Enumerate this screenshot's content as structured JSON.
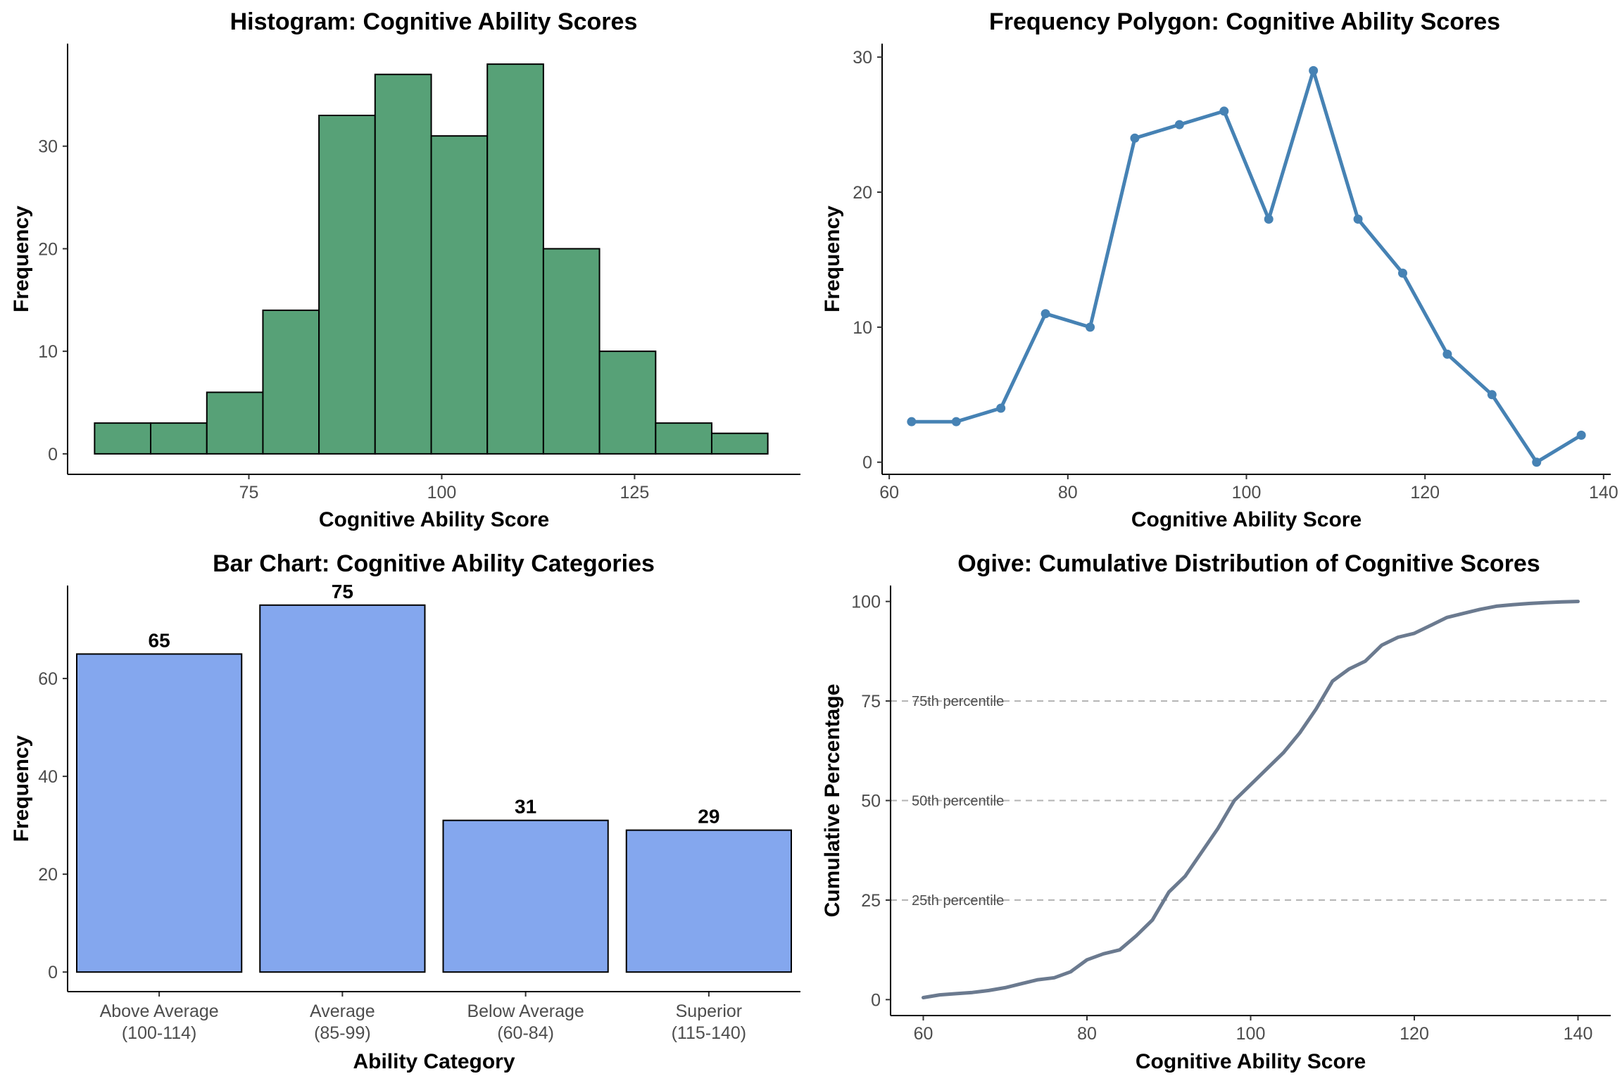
{
  "chart_data": [
    {
      "type": "bar",
      "subtype": "histogram",
      "title": "Histogram: Cognitive Ability Scores",
      "xlabel": "Cognitive Ability Score",
      "ylabel": "Frequency",
      "xlim": [
        51.5,
        146.5
      ],
      "ylim": [
        -2,
        40
      ],
      "xticks": [
        75,
        100,
        125
      ],
      "yticks": [
        0,
        10,
        20,
        30
      ],
      "grid": false,
      "bin_edges": [
        55,
        62.27,
        69.55,
        76.82,
        84.09,
        91.36,
        98.64,
        105.91,
        113.18,
        120.45,
        127.73,
        135,
        142.27
      ],
      "values": [
        3,
        3,
        6,
        14,
        33,
        37,
        31,
        38,
        20,
        10,
        3,
        2
      ],
      "colors": {
        "fill": "#57a177",
        "stroke": "#000000"
      }
    },
    {
      "type": "line",
      "subtype": "frequency polygon",
      "title": "Frequency Polygon: Cognitive Ability Scores",
      "xlabel": "Cognitive Ability Score",
      "ylabel": "Frequency",
      "xlim": [
        59.2,
        140.8
      ],
      "ylim": [
        -0.9,
        31
      ],
      "xticks": [
        60,
        80,
        100,
        120,
        140
      ],
      "yticks": [
        0,
        10,
        20,
        30
      ],
      "grid": false,
      "x": [
        62.5,
        67.5,
        72.5,
        77.5,
        82.5,
        87.5,
        92.5,
        97.5,
        102.5,
        107.5,
        112.5,
        117.5,
        122.5,
        127.5,
        132.5,
        137.5
      ],
      "y": [
        3,
        3,
        4,
        11,
        10,
        24,
        25,
        26,
        18,
        29,
        18,
        14,
        8,
        5,
        0,
        2
      ],
      "colors": {
        "line": "#4682b4"
      }
    },
    {
      "type": "bar",
      "title": "Bar Chart: Cognitive Ability Categories",
      "xlabel": "Ability Category",
      "ylabel": "Frequency",
      "ylim": [
        -4,
        79
      ],
      "yticks": [
        0,
        20,
        40,
        60
      ],
      "grid": false,
      "categories": [
        [
          "Above Average",
          "(100-114)"
        ],
        [
          "Average",
          "(85-99)"
        ],
        [
          "Below Average",
          "(60-84)"
        ],
        [
          "Superior",
          "(115-140)"
        ]
      ],
      "values": [
        65,
        75,
        31,
        29
      ],
      "data_labels": [
        "65",
        "75",
        "31",
        "29"
      ],
      "colors": {
        "fill": "#84a7ee",
        "stroke": "#000000"
      }
    },
    {
      "type": "line",
      "subtype": "ogive",
      "title": "Ogive: Cumulative Distribution of Cognitive Scores",
      "xlabel": "Cognitive Ability Score",
      "ylabel": "Cumulative Percentage",
      "xlim": [
        56,
        144
      ],
      "ylim": [
        -4,
        104
      ],
      "xticks": [
        60,
        80,
        100,
        120,
        140
      ],
      "yticks": [
        0,
        25,
        50,
        75,
        100
      ],
      "grid": false,
      "x": [
        60,
        62,
        64,
        66,
        68,
        70,
        72,
        74,
        76,
        78,
        80,
        82,
        84,
        86,
        88,
        90,
        92,
        94,
        96,
        98,
        100,
        102,
        104,
        106,
        108,
        110,
        112,
        114,
        116,
        118,
        120,
        122,
        124,
        126,
        128,
        130,
        132,
        134,
        136,
        138,
        140
      ],
      "y": [
        0.5,
        1.2,
        1.5,
        1.8,
        2.3,
        3,
        4,
        5,
        5.5,
        7,
        10,
        11.5,
        12.5,
        16,
        20,
        27,
        31,
        37,
        43,
        50,
        54,
        58,
        62,
        67,
        73,
        80,
        83,
        85,
        89,
        91,
        92,
        94,
        96,
        97,
        98,
        98.8,
        99.2,
        99.5,
        99.7,
        99.9,
        100
      ],
      "reference_lines": [
        {
          "y": 25,
          "label": "25th percentile"
        },
        {
          "y": 50,
          "label": "50th percentile"
        },
        {
          "y": 75,
          "label": "75th percentile"
        }
      ],
      "colors": {
        "line": "#6b7a8f",
        "reference": "#b3b3b3"
      }
    }
  ]
}
